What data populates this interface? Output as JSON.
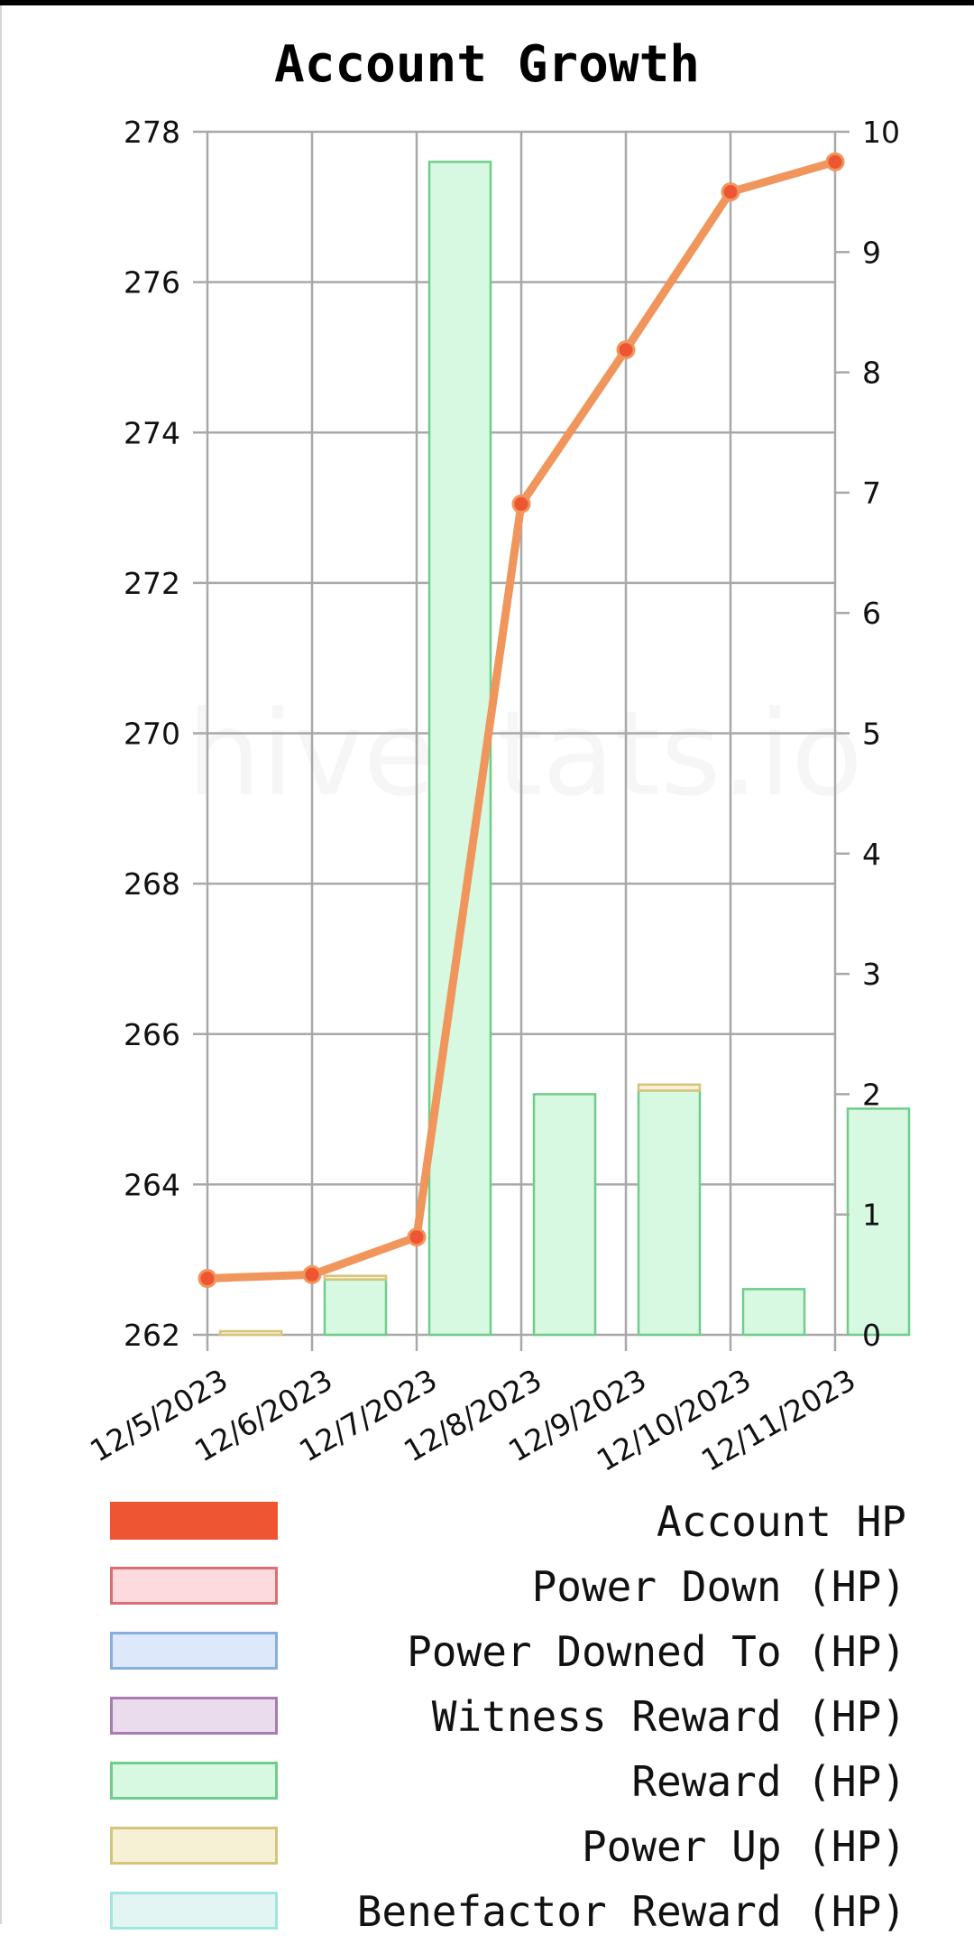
{
  "title": "Account Growth",
  "watermark": "hivestats.io",
  "chart_data": {
    "type": "bar",
    "title": "Account Growth",
    "categories": [
      "12/5/2023",
      "12/6/2023",
      "12/7/2023",
      "12/8/2023",
      "12/9/2023",
      "12/10/2023",
      "12/11/2023"
    ],
    "y_left": {
      "ylim": [
        262,
        278
      ],
      "ticks": [
        262,
        264,
        266,
        268,
        270,
        272,
        274,
        276,
        278
      ]
    },
    "y_right": {
      "ylim": [
        0,
        10
      ],
      "ticks": [
        0,
        1,
        2,
        3,
        4,
        5,
        6,
        7,
        8,
        9,
        10
      ]
    },
    "grid": true,
    "legend_position": "bottom",
    "line_series": {
      "name": "Account HP",
      "axis": "left",
      "color": "#f0955c",
      "marker_color": "#ee5533",
      "x": [
        "12/5/2023",
        "12/6/2023",
        "12/7/2023",
        "12/8/2023",
        "12/9/2023",
        "12/10/2023",
        "12/11/2023"
      ],
      "values": [
        262.75,
        262.8,
        263.3,
        273.05,
        275.1,
        277.2,
        277.6
      ]
    },
    "bar_series": [
      {
        "name": "Reward (HP)",
        "axis": "right",
        "fill": "#d7f8e1",
        "stroke": "#6fcd8a",
        "values": [
          0,
          0.46,
          9.75,
          2.0,
          2.03,
          0.38,
          1.88
        ]
      },
      {
        "name": "Power Up (HP)",
        "axis": "right",
        "fill": "#f6f0d5",
        "stroke": "#d6c47a",
        "values": [
          0.03,
          0.03,
          0,
          0,
          0.05,
          0,
          0
        ]
      }
    ]
  },
  "legend": [
    {
      "label": "Account HP",
      "fill": "#ee5533",
      "stroke": "#ee5533"
    },
    {
      "label": "Power Down (HP)",
      "fill": "#fddadd",
      "stroke": "#dd6e72"
    },
    {
      "label": "Power Downed To (HP)",
      "fill": "#dde9fb",
      "stroke": "#86aee0"
    },
    {
      "label": "Witness Reward (HP)",
      "fill": "#eadcec",
      "stroke": "#a87cb0"
    },
    {
      "label": "Reward (HP)",
      "fill": "#d7f8e1",
      "stroke": "#6fcd8a"
    },
    {
      "label": "Power Up (HP)",
      "fill": "#f6f0d5",
      "stroke": "#d6c47a"
    },
    {
      "label": "Benefactor Reward (HP)",
      "fill": "#e2f5f2",
      "stroke": "#9fe6e0"
    }
  ]
}
